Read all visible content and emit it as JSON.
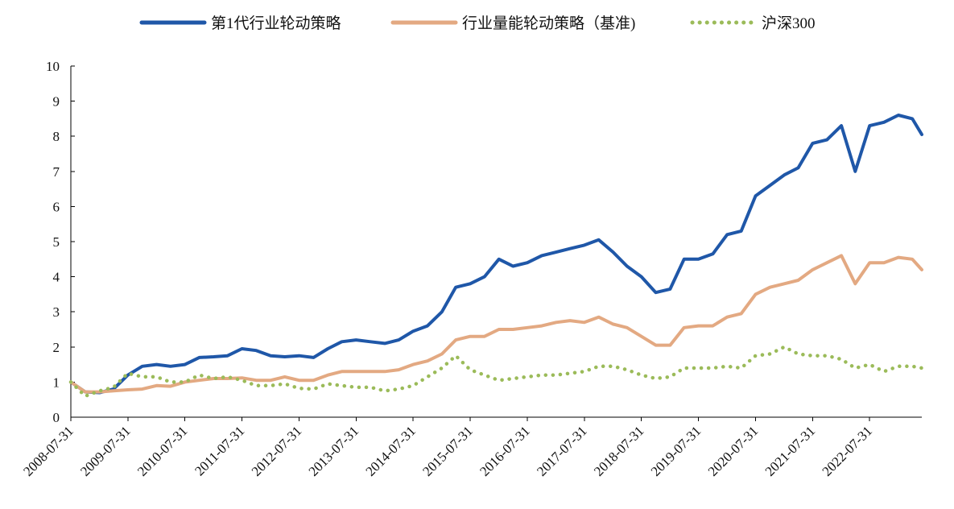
{
  "chart_data": {
    "type": "line",
    "title": "",
    "xlabel": "",
    "ylabel": "",
    "ylim": [
      0,
      10
    ],
    "yticks": [
      "0",
      "1",
      "2",
      "3",
      "4",
      "5",
      "6",
      "7",
      "8",
      "9",
      "10"
    ],
    "x_range": [
      "2008-07-31",
      "2023-06-30"
    ],
    "xticks": [
      "2008-07-31",
      "2009-07-31",
      "2010-07-31",
      "2011-07-31",
      "2012-07-31",
      "2013-07-31",
      "2014-07-31",
      "2015-07-31",
      "2016-07-31",
      "2017-07-31",
      "2018-07-31",
      "2019-07-31",
      "2020-07-31",
      "2021-07-31",
      "2022-07-31"
    ],
    "grid": false,
    "legend_position": "top",
    "series": [
      {
        "name": "第1代行业轮动策略",
        "color": "#1F57A8",
        "style": "solid",
        "points": [
          [
            "2008-07-31",
            1.0
          ],
          [
            "2008-10-31",
            0.72
          ],
          [
            "2009-01-31",
            0.7
          ],
          [
            "2009-04-30",
            0.8
          ],
          [
            "2009-07-31",
            1.2
          ],
          [
            "2009-10-31",
            1.45
          ],
          [
            "2010-01-31",
            1.5
          ],
          [
            "2010-04-30",
            1.45
          ],
          [
            "2010-07-31",
            1.5
          ],
          [
            "2010-10-31",
            1.7
          ],
          [
            "2011-01-31",
            1.72
          ],
          [
            "2011-04-30",
            1.75
          ],
          [
            "2011-07-31",
            1.95
          ],
          [
            "2011-10-31",
            1.9
          ],
          [
            "2012-01-31",
            1.75
          ],
          [
            "2012-04-30",
            1.72
          ],
          [
            "2012-07-31",
            1.75
          ],
          [
            "2012-10-31",
            1.7
          ],
          [
            "2013-01-31",
            1.95
          ],
          [
            "2013-04-30",
            2.15
          ],
          [
            "2013-07-31",
            2.2
          ],
          [
            "2013-10-31",
            2.15
          ],
          [
            "2014-01-31",
            2.1
          ],
          [
            "2014-04-30",
            2.2
          ],
          [
            "2014-07-31",
            2.45
          ],
          [
            "2014-10-31",
            2.6
          ],
          [
            "2015-01-31",
            3.0
          ],
          [
            "2015-04-30",
            3.7
          ],
          [
            "2015-07-31",
            3.8
          ],
          [
            "2015-10-31",
            4.0
          ],
          [
            "2016-01-31",
            4.5
          ],
          [
            "2016-04-30",
            4.3
          ],
          [
            "2016-07-31",
            4.4
          ],
          [
            "2016-10-31",
            4.6
          ],
          [
            "2017-01-31",
            4.7
          ],
          [
            "2017-04-30",
            4.8
          ],
          [
            "2017-07-31",
            4.9
          ],
          [
            "2017-10-31",
            5.05
          ],
          [
            "2018-01-31",
            4.7
          ],
          [
            "2018-04-30",
            4.3
          ],
          [
            "2018-07-31",
            4.0
          ],
          [
            "2018-10-31",
            3.55
          ],
          [
            "2019-01-31",
            3.65
          ],
          [
            "2019-04-30",
            4.5
          ],
          [
            "2019-07-31",
            4.5
          ],
          [
            "2019-10-31",
            4.65
          ],
          [
            "2020-01-31",
            5.2
          ],
          [
            "2020-04-30",
            5.3
          ],
          [
            "2020-07-31",
            6.3
          ],
          [
            "2020-10-31",
            6.6
          ],
          [
            "2021-01-31",
            6.9
          ],
          [
            "2021-04-30",
            7.1
          ],
          [
            "2021-07-31",
            7.8
          ],
          [
            "2021-10-31",
            7.9
          ],
          [
            "2022-01-31",
            8.3
          ],
          [
            "2022-04-30",
            7.0
          ],
          [
            "2022-07-31",
            8.3
          ],
          [
            "2022-10-31",
            8.4
          ],
          [
            "2023-01-31",
            8.6
          ],
          [
            "2023-04-30",
            8.5
          ],
          [
            "2023-06-30",
            8.05
          ]
        ]
      },
      {
        "name": "行业量能轮动策略（基准)",
        "color": "#E3A982",
        "style": "solid",
        "points": [
          [
            "2008-07-31",
            1.0
          ],
          [
            "2008-10-31",
            0.72
          ],
          [
            "2009-01-31",
            0.72
          ],
          [
            "2009-04-30",
            0.75
          ],
          [
            "2009-07-31",
            0.78
          ],
          [
            "2009-10-31",
            0.8
          ],
          [
            "2010-01-31",
            0.9
          ],
          [
            "2010-04-30",
            0.88
          ],
          [
            "2010-07-31",
            1.0
          ],
          [
            "2010-10-31",
            1.05
          ],
          [
            "2011-01-31",
            1.1
          ],
          [
            "2011-04-30",
            1.1
          ],
          [
            "2011-07-31",
            1.12
          ],
          [
            "2011-10-31",
            1.05
          ],
          [
            "2012-01-31",
            1.05
          ],
          [
            "2012-04-30",
            1.15
          ],
          [
            "2012-07-31",
            1.05
          ],
          [
            "2012-10-31",
            1.05
          ],
          [
            "2013-01-31",
            1.2
          ],
          [
            "2013-04-30",
            1.3
          ],
          [
            "2013-07-31",
            1.3
          ],
          [
            "2013-10-31",
            1.3
          ],
          [
            "2014-01-31",
            1.3
          ],
          [
            "2014-04-30",
            1.35
          ],
          [
            "2014-07-31",
            1.5
          ],
          [
            "2014-10-31",
            1.6
          ],
          [
            "2015-01-31",
            1.8
          ],
          [
            "2015-04-30",
            2.2
          ],
          [
            "2015-07-31",
            2.3
          ],
          [
            "2015-10-31",
            2.3
          ],
          [
            "2016-01-31",
            2.5
          ],
          [
            "2016-04-30",
            2.5
          ],
          [
            "2016-07-31",
            2.55
          ],
          [
            "2016-10-31",
            2.6
          ],
          [
            "2017-01-31",
            2.7
          ],
          [
            "2017-04-30",
            2.75
          ],
          [
            "2017-07-31",
            2.7
          ],
          [
            "2017-10-31",
            2.85
          ],
          [
            "2018-01-31",
            2.65
          ],
          [
            "2018-04-30",
            2.55
          ],
          [
            "2018-07-31",
            2.3
          ],
          [
            "2018-10-31",
            2.05
          ],
          [
            "2019-01-31",
            2.05
          ],
          [
            "2019-04-30",
            2.55
          ],
          [
            "2019-07-31",
            2.6
          ],
          [
            "2019-10-31",
            2.6
          ],
          [
            "2020-01-31",
            2.85
          ],
          [
            "2020-04-30",
            2.95
          ],
          [
            "2020-07-31",
            3.5
          ],
          [
            "2020-10-31",
            3.7
          ],
          [
            "2021-01-31",
            3.8
          ],
          [
            "2021-04-30",
            3.9
          ],
          [
            "2021-07-31",
            4.2
          ],
          [
            "2021-10-31",
            4.4
          ],
          [
            "2022-01-31",
            4.6
          ],
          [
            "2022-04-30",
            3.8
          ],
          [
            "2022-07-31",
            4.4
          ],
          [
            "2022-10-31",
            4.4
          ],
          [
            "2023-01-31",
            4.55
          ],
          [
            "2023-04-30",
            4.5
          ],
          [
            "2023-06-30",
            4.2
          ]
        ]
      },
      {
        "name": "沪深300",
        "color": "#9BBB59",
        "style": "dotted",
        "points": [
          [
            "2008-07-31",
            1.0
          ],
          [
            "2008-10-31",
            0.6
          ],
          [
            "2009-01-31",
            0.75
          ],
          [
            "2009-04-30",
            0.85
          ],
          [
            "2009-07-31",
            1.25
          ],
          [
            "2009-10-31",
            1.15
          ],
          [
            "2010-01-31",
            1.15
          ],
          [
            "2010-04-30",
            1.0
          ],
          [
            "2010-07-31",
            1.0
          ],
          [
            "2010-10-31",
            1.2
          ],
          [
            "2011-01-31",
            1.1
          ],
          [
            "2011-04-30",
            1.15
          ],
          [
            "2011-07-31",
            1.05
          ],
          [
            "2011-10-31",
            0.9
          ],
          [
            "2012-01-31",
            0.9
          ],
          [
            "2012-04-30",
            0.95
          ],
          [
            "2012-07-31",
            0.82
          ],
          [
            "2012-10-31",
            0.8
          ],
          [
            "2013-01-31",
            0.95
          ],
          [
            "2013-04-30",
            0.9
          ],
          [
            "2013-07-31",
            0.85
          ],
          [
            "2013-10-31",
            0.85
          ],
          [
            "2014-01-31",
            0.75
          ],
          [
            "2014-04-30",
            0.8
          ],
          [
            "2014-07-31",
            0.9
          ],
          [
            "2014-10-31",
            1.15
          ],
          [
            "2015-01-31",
            1.4
          ],
          [
            "2015-04-30",
            1.75
          ],
          [
            "2015-07-31",
            1.35
          ],
          [
            "2015-10-31",
            1.2
          ],
          [
            "2016-01-31",
            1.05
          ],
          [
            "2016-04-30",
            1.1
          ],
          [
            "2016-07-31",
            1.15
          ],
          [
            "2016-10-31",
            1.2
          ],
          [
            "2017-01-31",
            1.2
          ],
          [
            "2017-04-30",
            1.25
          ],
          [
            "2017-07-31",
            1.3
          ],
          [
            "2017-10-31",
            1.45
          ],
          [
            "2018-01-31",
            1.45
          ],
          [
            "2018-04-30",
            1.35
          ],
          [
            "2018-07-31",
            1.2
          ],
          [
            "2018-10-31",
            1.1
          ],
          [
            "2019-01-31",
            1.15
          ],
          [
            "2019-04-30",
            1.4
          ],
          [
            "2019-07-31",
            1.4
          ],
          [
            "2019-10-31",
            1.4
          ],
          [
            "2020-01-31",
            1.45
          ],
          [
            "2020-04-30",
            1.4
          ],
          [
            "2020-07-31",
            1.75
          ],
          [
            "2020-10-31",
            1.8
          ],
          [
            "2021-01-31",
            2.0
          ],
          [
            "2021-04-30",
            1.8
          ],
          [
            "2021-07-31",
            1.75
          ],
          [
            "2021-10-31",
            1.75
          ],
          [
            "2022-01-31",
            1.65
          ],
          [
            "2022-04-30",
            1.4
          ],
          [
            "2022-07-31",
            1.5
          ],
          [
            "2022-10-31",
            1.3
          ],
          [
            "2023-01-31",
            1.45
          ],
          [
            "2023-04-30",
            1.45
          ],
          [
            "2023-06-30",
            1.4
          ]
        ]
      }
    ]
  }
}
